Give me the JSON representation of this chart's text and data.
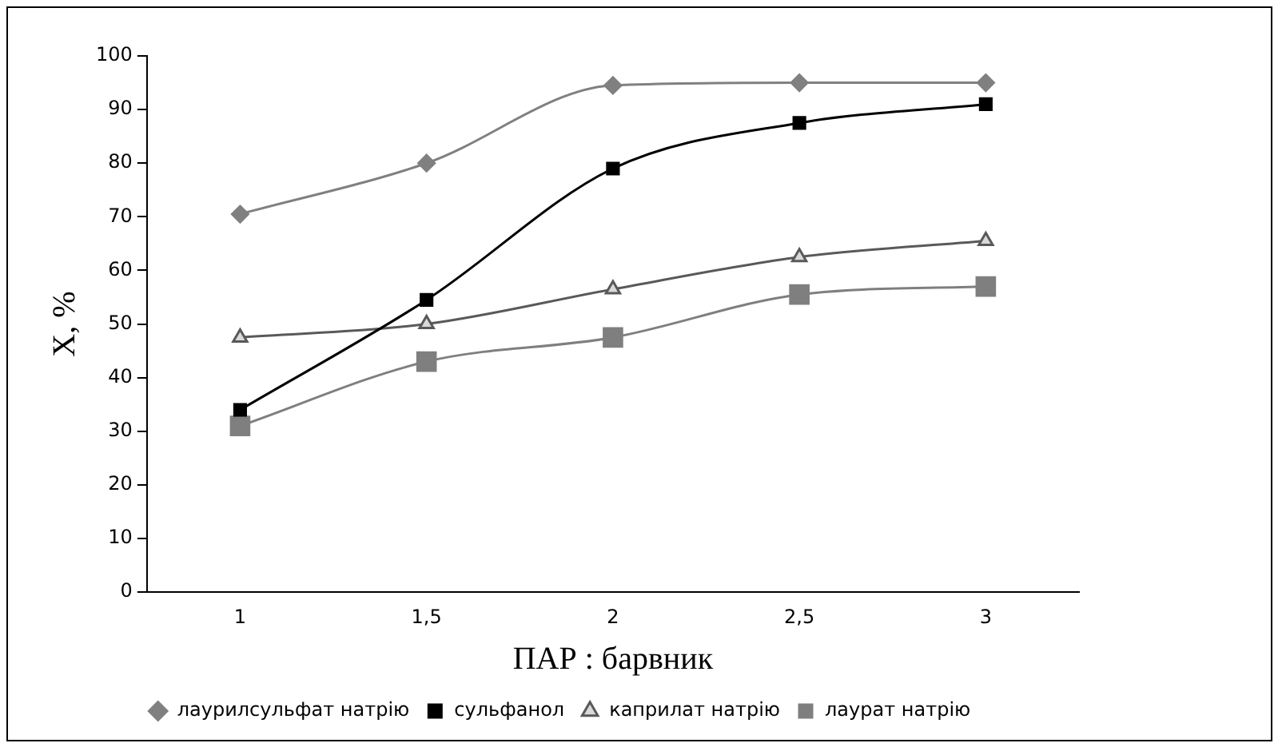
{
  "chart_data": {
    "type": "line",
    "xlabel": "ПАР : барвник",
    "ylabel": "X, %",
    "categories": [
      "1",
      "1,5",
      "2",
      "2,5",
      "3"
    ],
    "series": [
      {
        "name": "лаурилсульфат натрію",
        "color": "#808080",
        "marker": "diamond",
        "values": [
          70.5,
          80,
          94.5,
          95,
          95
        ]
      },
      {
        "name": "сульфанол",
        "color": "#000000",
        "marker": "square",
        "values": [
          34,
          54.5,
          79,
          87.5,
          91
        ]
      },
      {
        "name": "каприлат натрію",
        "color": "#595959",
        "marker": "triangle",
        "values": [
          47.5,
          50,
          56.5,
          62.5,
          65.5
        ]
      },
      {
        "name": "лаурат натрію",
        "color": "#7f7f7f",
        "marker": "square",
        "values": [
          31,
          43,
          47.5,
          55.5,
          57
        ]
      }
    ],
    "ylim": [
      0,
      100
    ],
    "yticks": [
      0,
      10,
      20,
      30,
      40,
      50,
      60,
      70,
      80,
      90,
      100
    ],
    "grid": false,
    "legend": "bottom"
  }
}
